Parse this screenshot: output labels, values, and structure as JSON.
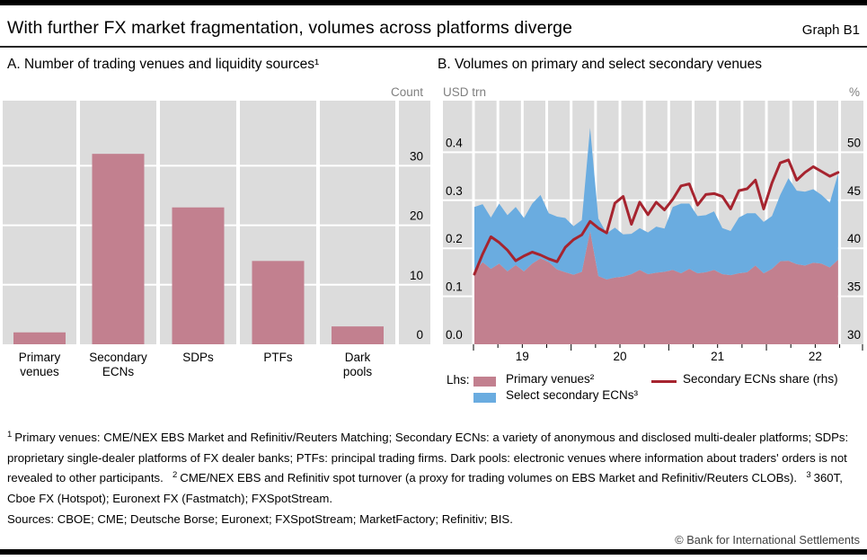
{
  "header": {
    "title": "With further FX market fragmentation, volumes across platforms diverge",
    "graph_label": "Graph B1"
  },
  "colors": {
    "accent_pink": "#c2808f",
    "accent_blue": "#6aace0",
    "accent_red": "#a6242f",
    "plot_bg": "#dcdcdc",
    "grid": "#ffffff",
    "unit_text": "#7f7f7f",
    "text": "#000000",
    "rule": "#000000"
  },
  "chart_data": [
    {
      "type": "bar",
      "title": "A. Number of trading venues and liquidity sources¹",
      "unit": "Count",
      "categories": [
        "Primary venues",
        "Secondary ECNs",
        "SDPs",
        "PTFs",
        "Dark pools"
      ],
      "category_label_lines": [
        [
          "Primary",
          "venues"
        ],
        [
          "Secondary",
          "ECNs"
        ],
        [
          "SDPs"
        ],
        [
          "PTFs"
        ],
        [
          "Dark",
          "pools"
        ]
      ],
      "values": [
        2,
        32,
        23,
        14,
        3
      ],
      "yticks": [
        0,
        10,
        20,
        30
      ],
      "ylim": [
        0,
        41
      ],
      "grid": true,
      "ylabel_position": "right-inside"
    },
    {
      "type": "stacked-area+line",
      "title": "B. Volumes on primary and select secondary venues",
      "unit_left": "USD trn",
      "unit_right": "%",
      "frequency": "monthly",
      "x_start": "2019-01",
      "x_end": "2022-09",
      "x_tick_labels": [
        "19",
        "20",
        "21",
        "22"
      ],
      "yticks_left": [
        0.0,
        0.1,
        0.2,
        0.3,
        0.4
      ],
      "yticks_right": [
        30,
        35,
        40,
        45,
        50
      ],
      "ylim_left": [
        0,
        0.5
      ],
      "ylim_right": [
        30,
        55
      ],
      "grid": true,
      "series": [
        {
          "name": "Primary venues",
          "axis": "lhs",
          "render": "area",
          "values": [
            0.152,
            0.171,
            0.157,
            0.168,
            0.152,
            0.165,
            0.152,
            0.168,
            0.179,
            0.171,
            0.156,
            0.15,
            0.145,
            0.151,
            0.236,
            0.142,
            0.135,
            0.139,
            0.141,
            0.146,
            0.155,
            0.146,
            0.149,
            0.151,
            0.155,
            0.148,
            0.157,
            0.148,
            0.15,
            0.155,
            0.146,
            0.144,
            0.148,
            0.15,
            0.164,
            0.148,
            0.157,
            0.173,
            0.174,
            0.167,
            0.164,
            0.17,
            0.168,
            0.16,
            0.176
          ]
        },
        {
          "name": "Select secondary ECNs",
          "axis": "lhs",
          "render": "area-stacked",
          "values": [
            0.134,
            0.121,
            0.107,
            0.125,
            0.117,
            0.121,
            0.111,
            0.125,
            0.132,
            0.102,
            0.11,
            0.113,
            0.101,
            0.108,
            0.215,
            0.12,
            0.096,
            0.104,
            0.088,
            0.084,
            0.087,
            0.087,
            0.096,
            0.09,
            0.131,
            0.145,
            0.136,
            0.119,
            0.119,
            0.122,
            0.096,
            0.092,
            0.116,
            0.123,
            0.109,
            0.107,
            0.11,
            0.138,
            0.172,
            0.153,
            0.154,
            0.153,
            0.143,
            0.135,
            0.179
          ]
        },
        {
          "name": "Secondary ECNs share",
          "axis": "rhs",
          "render": "line",
          "values": [
            37.3,
            39.4,
            41.2,
            40.6,
            39.8,
            38.7,
            39.2,
            39.6,
            39.3,
            38.9,
            38.6,
            40.1,
            40.9,
            41.4,
            42.8,
            42.1,
            41.6,
            44.7,
            45.4,
            42.5,
            44.8,
            43.5,
            44.8,
            44.0,
            45.1,
            46.5,
            46.7,
            44.5,
            45.6,
            45.7,
            45.4,
            44.1,
            46.0,
            46.2,
            47.1,
            44.1,
            46.8,
            48.9,
            49.2,
            47.1,
            47.9,
            48.5,
            48.0,
            47.5,
            47.9
          ]
        }
      ]
    }
  ],
  "legend": {
    "prefix": "Lhs:",
    "items": [
      {
        "label": "Primary venues²",
        "swatch": "pink"
      },
      {
        "label": "Select secondary ECNs³",
        "swatch": "blue"
      }
    ],
    "line_item": {
      "label": "Secondary ECNs share (rhs)",
      "swatch": "red-line"
    }
  },
  "footnotes": [
    {
      "marker": "1",
      "text": "Primary venues: CME/NEX EBS Market and Refinitiv/Reuters Matching; Secondary ECNs: a variety of anonymous and disclosed multi-dealer platforms; SDPs: proprietary single-dealer platforms of FX dealer banks; PTFs: principal trading firms. Dark pools: electronic venues where information about traders' orders is not revealed to other participants."
    },
    {
      "marker": "2",
      "text": "CME/NEX EBS and Refinitiv spot turnover (a proxy for trading volumes on EBS Market and Refinitiv/Reuters CLOBs)."
    },
    {
      "marker": "3",
      "text": "360T, Cboe FX (Hotspot); Euronext FX (Fastmatch); FXSpotStream."
    }
  ],
  "sources": "Sources: CBOE; CME; Deutsche Borse; Euronext; FXSpotStream; MarketFactory; Refinitiv; BIS.",
  "copyright": "© Bank for International Settlements"
}
